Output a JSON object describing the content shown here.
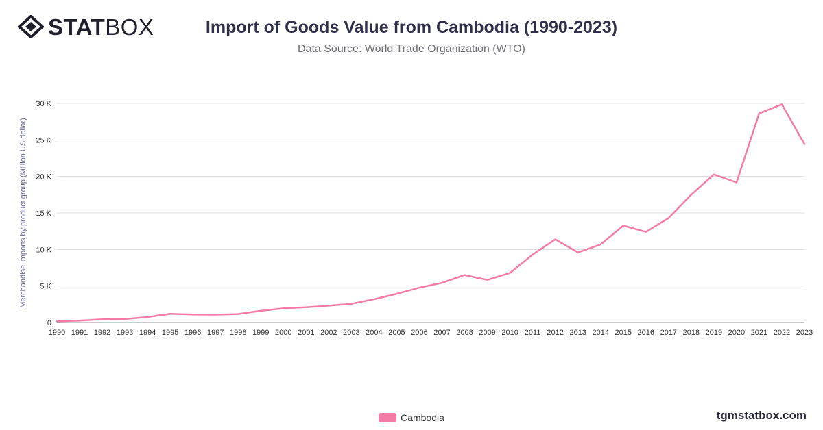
{
  "brand": {
    "logo_bold": "STAT",
    "logo_light": "BOX",
    "footer": "tgmstatbox.com"
  },
  "chart_data": {
    "type": "line",
    "title": "Import of Goods Value from Cambodia (1990-2023)",
    "subtitle": "Data Source: World Trade Organization (WTO)",
    "ylabel": "Merchandise imports by product group (Million US dollar)",
    "xlabel": "",
    "ylim": [
      0,
      30000
    ],
    "yticks": [
      0,
      5000,
      10000,
      15000,
      20000,
      25000,
      30000
    ],
    "ytick_labels": [
      "0",
      "5 K",
      "10 K",
      "15 K",
      "20 K",
      "25 K",
      "30 K"
    ],
    "x": [
      "1990",
      "1991",
      "1992",
      "1993",
      "1994",
      "1995",
      "1996",
      "1997",
      "1998",
      "1999",
      "2000",
      "2001",
      "2002",
      "2003",
      "2004",
      "2005",
      "2006",
      "2007",
      "2008",
      "2009",
      "2010",
      "2011",
      "2012",
      "2013",
      "2014",
      "2015",
      "2016",
      "2017",
      "2018",
      "2019",
      "2020",
      "2021",
      "2022",
      "2023"
    ],
    "grid": true,
    "legend_position": "bottom",
    "series": [
      {
        "name": "Cambodia",
        "color": "#f47ba8",
        "values": [
          160,
          250,
          450,
          480,
          750,
          1190,
          1100,
          1080,
          1160,
          1600,
          1940,
          2090,
          2310,
          2560,
          3190,
          3930,
          4770,
          5430,
          6510,
          5830,
          6790,
          9300,
          11380,
          9590,
          10690,
          13270,
          12400,
          14300,
          17490,
          20280,
          19170,
          28620,
          29870,
          24420
        ]
      }
    ]
  }
}
